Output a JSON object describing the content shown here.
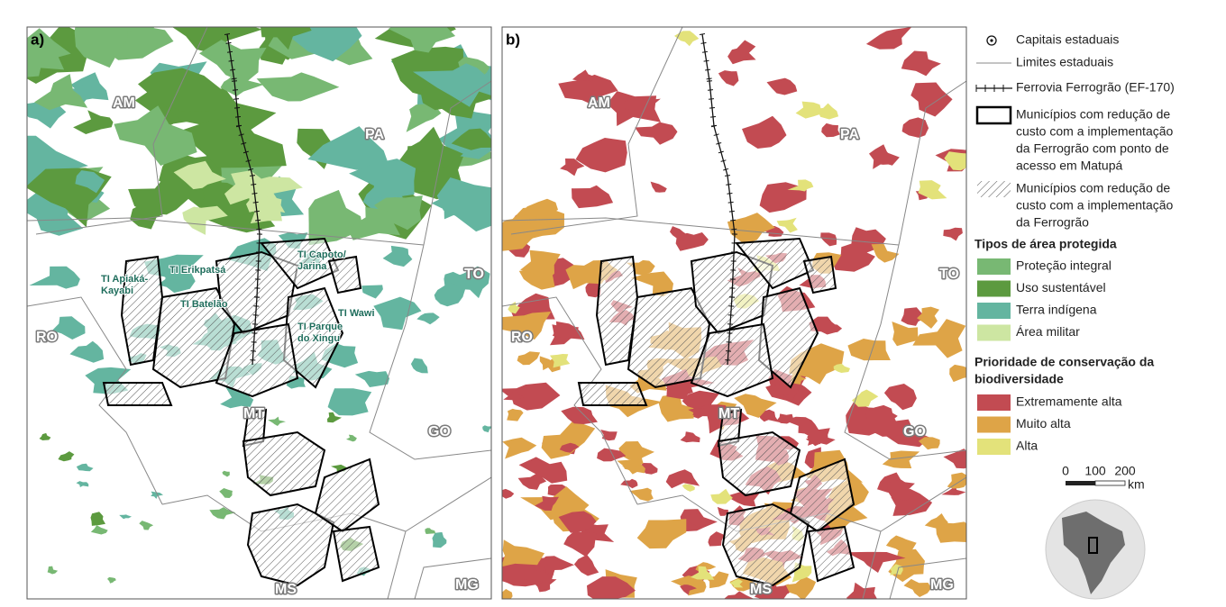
{
  "panels": [
    {
      "label": "a)",
      "states": [
        "AM",
        "PA",
        "RO",
        "TO",
        "MT",
        "GO",
        "MS",
        "MG"
      ],
      "indigenous_lands": [
        [
          "TI Apiaká-",
          "Kayabi"
        ],
        [
          "TI Erikpatsá"
        ],
        [
          "TI Batelão"
        ],
        [
          "TI Capoto/",
          "Jarina"
        ],
        [
          "TI Wawi"
        ],
        [
          "TI Parque",
          "do Xingu"
        ]
      ]
    },
    {
      "label": "b)",
      "states": [
        "AM",
        "PA",
        "RO",
        "TO",
        "MT",
        "GO",
        "MS",
        "MG"
      ]
    }
  ],
  "legend": {
    "symbols": [
      [
        "Capitais estaduais"
      ],
      [
        "Limites estaduais"
      ],
      [
        "Ferrovia Ferrogrão (EF-170)"
      ],
      [
        "Municípios com redução de",
        "custo com a implementação",
        "da Ferrogrão com ponto de",
        "acesso em Matupá"
      ],
      [
        "Municípios com redução de",
        "custo com a implementação",
        "da Ferrogrão"
      ]
    ],
    "protected_title": "Tipos de área protegida",
    "protected": [
      {
        "label": "Proteção integral",
        "color": "#78b873"
      },
      {
        "label": "Uso sustentável",
        "color": "#5c9a3f"
      },
      {
        "label": "Terra indígena",
        "color": "#64b5a0"
      },
      {
        "label": "Área militar",
        "color": "#cde6a2"
      }
    ],
    "priority_title": [
      "Prioridade de conservação da",
      "biodiversidade"
    ],
    "priority": [
      {
        "label": "Extremamente alta",
        "color": "#c24b52"
      },
      {
        "label": "Muito alta",
        "color": "#dea447"
      },
      {
        "label": "Alta",
        "color": "#e3e27a"
      }
    ],
    "scale": {
      "ticks": [
        0,
        100,
        200
      ],
      "unit": "km"
    }
  }
}
